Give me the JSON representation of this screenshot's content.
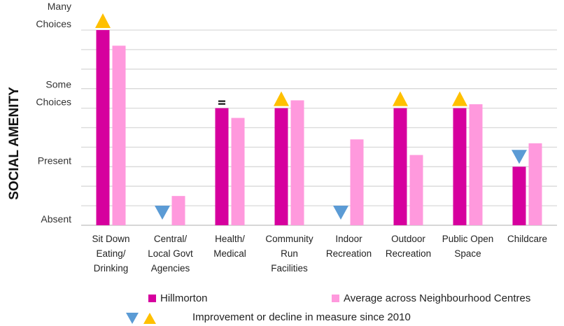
{
  "chart_data": {
    "type": "bar",
    "ylabel": "SOCIAL AMENITY",
    "y_ticks": [
      {
        "lines": [
          "Many",
          "Choices"
        ],
        "value": 10
      },
      {
        "lines": [
          "Some",
          "Choices"
        ],
        "value": 6
      },
      {
        "lines": [
          "Present"
        ],
        "value": 3
      },
      {
        "lines": [
          "Absent"
        ],
        "value": 0
      }
    ],
    "ylim": [
      0,
      10
    ],
    "grid": true,
    "categories": [
      [
        "Sit Down",
        "Eating/",
        "Drinking"
      ],
      [
        "Central/",
        "Local Govt",
        "Agencies"
      ],
      [
        "Health/",
        "Medical"
      ],
      [
        "Community",
        "Run",
        "Facilities"
      ],
      [
        "Indoor",
        "Recreation"
      ],
      [
        "Outdoor",
        "Recreation"
      ],
      [
        "Public Open",
        "Space"
      ],
      [
        "Childcare"
      ]
    ],
    "series": [
      {
        "name": "Hillmorton",
        "color": "#d6009e",
        "values": [
          10,
          0,
          6,
          6,
          0,
          6,
          6,
          3
        ]
      },
      {
        "name": "Average across Neighbourhood Centres",
        "color": "#ff99dd",
        "values": [
          9.2,
          1.5,
          5.5,
          6.4,
          4.4,
          3.6,
          6.2,
          4.2
        ]
      }
    ],
    "change_markers": [
      "up",
      "down",
      "same",
      "up",
      "down",
      "up",
      "up",
      "down"
    ],
    "change_colors": {
      "up": "#ffc000",
      "down": "#5b9bd5",
      "same": "#000000"
    },
    "change_legend_label": "Improvement or decline in measure since 2010"
  }
}
